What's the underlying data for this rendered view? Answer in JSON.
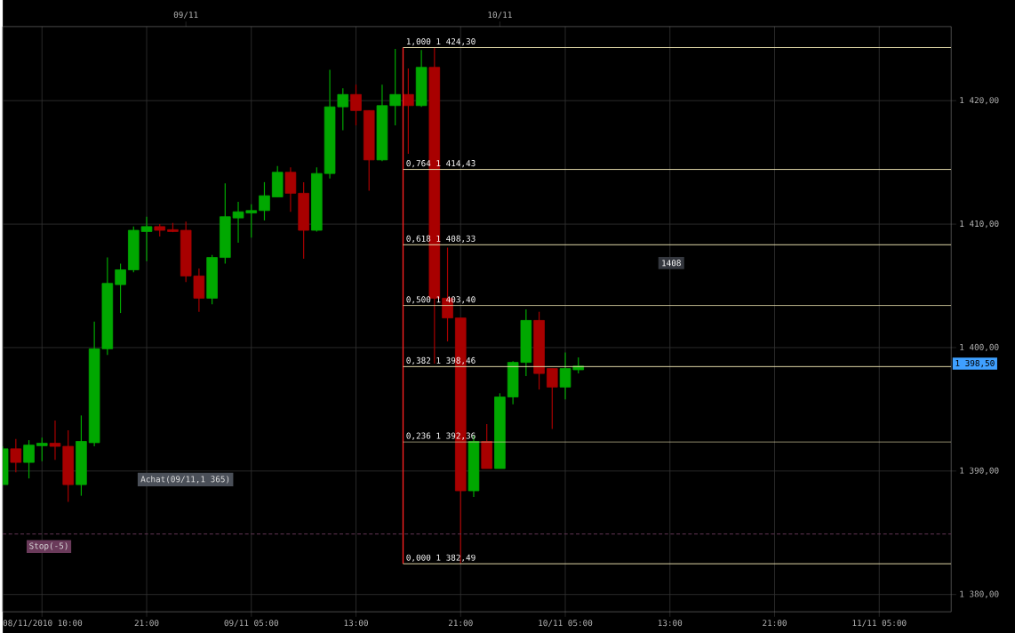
{
  "chart_data": {
    "type": "candlestick",
    "x": [
      "2010-11-08T10:00",
      "2010-11-08T11:00",
      "2010-11-08T12:00",
      "2010-11-08T13:00",
      "2010-11-08T14:00",
      "2010-11-08T15:00",
      "2010-11-08T16:00",
      "2010-11-08T17:00",
      "2010-11-08T18:00",
      "2010-11-08T19:00",
      "2010-11-08T20:00",
      "2010-11-08T21:00",
      "2010-11-08T22:00",
      "2010-11-08T23:00",
      "2010-11-09T00:00",
      "2010-11-09T01:00",
      "2010-11-09T02:00",
      "2010-11-09T03:00",
      "2010-11-09T04:00",
      "2010-11-09T05:00",
      "2010-11-09T06:00",
      "2010-11-09T07:00",
      "2010-11-09T08:00",
      "2010-11-09T09:00",
      "2010-11-09T10:00",
      "2010-11-09T11:00",
      "2010-11-09T12:00",
      "2010-11-09T13:00",
      "2010-11-09T14:00",
      "2010-11-09T15:00",
      "2010-11-09T16:00",
      "2010-11-09T17:00",
      "2010-11-09T18:00",
      "2010-11-09T19:00",
      "2010-11-09T20:00",
      "2010-11-09T21:00",
      "2010-11-09T22:00",
      "2010-11-09T23:00",
      "2010-11-10T00:00",
      "2010-11-10T01:00",
      "2010-11-10T02:00",
      "2010-11-10T03:00",
      "2010-11-10T04:00",
      "2010-11-10T05:00",
      "2010-11-10T06:00"
    ],
    "ohlc": [
      [
        1388.9,
        1392.0,
        1388.9,
        1391.8
      ],
      [
        1391.8,
        1392.6,
        1389.9,
        1390.7
      ],
      [
        1390.7,
        1392.5,
        1389.4,
        1392.1
      ],
      [
        1392.05,
        1392.7,
        1390.8,
        1392.25
      ],
      [
        1392.25,
        1394.1,
        1390.9,
        1392.0
      ],
      [
        1392.0,
        1393.3,
        1387.5,
        1388.9
      ],
      [
        1388.9,
        1394.5,
        1388.0,
        1392.4
      ],
      [
        1392.3,
        1402.1,
        1392.0,
        1399.9
      ],
      [
        1399.9,
        1407.3,
        1399.4,
        1405.2
      ],
      [
        1405.1,
        1406.8,
        1402.8,
        1406.3
      ],
      [
        1406.3,
        1409.8,
        1406.1,
        1409.5
      ],
      [
        1409.4,
        1410.6,
        1407.0,
        1409.8
      ],
      [
        1409.8,
        1410.0,
        1409.0,
        1409.5
      ],
      [
        1409.55,
        1410.1,
        1409.35,
        1409.4
      ],
      [
        1409.5,
        1410.2,
        1405.3,
        1405.8
      ],
      [
        1405.8,
        1406.4,
        1402.9,
        1404.0
      ],
      [
        1404.0,
        1407.5,
        1403.5,
        1407.3
      ],
      [
        1407.3,
        1413.3,
        1406.8,
        1410.6
      ],
      [
        1410.5,
        1411.8,
        1408.5,
        1411.0
      ],
      [
        1410.9,
        1411.6,
        1408.9,
        1411.1
      ],
      [
        1411.1,
        1413.4,
        1410.3,
        1412.3
      ],
      [
        1412.2,
        1414.7,
        1412.2,
        1414.2
      ],
      [
        1414.2,
        1414.6,
        1411.0,
        1412.5
      ],
      [
        1412.5,
        1413.4,
        1407.2,
        1409.5
      ],
      [
        1409.5,
        1414.6,
        1409.4,
        1414.1
      ],
      [
        1414.1,
        1422.5,
        1413.7,
        1419.5
      ],
      [
        1419.5,
        1421.0,
        1417.6,
        1420.5
      ],
      [
        1420.5,
        1421.3,
        1418.0,
        1419.2
      ],
      [
        1419.2,
        1419.2,
        1412.7,
        1415.2
      ],
      [
        1415.2,
        1421.3,
        1415.1,
        1419.6
      ],
      [
        1419.6,
        1424.2,
        1418.0,
        1420.5
      ],
      [
        1420.5,
        1422.6,
        1415.7,
        1419.6
      ],
      [
        1419.6,
        1424.1,
        1419.5,
        1422.7
      ],
      [
        1422.7,
        1424.3,
        1398.7,
        1404.0
      ],
      [
        1404.0,
        1408.1,
        1400.5,
        1402.4
      ],
      [
        1402.4,
        1402.4,
        1382.49,
        1388.4
      ],
      [
        1388.4,
        1392.9,
        1387.9,
        1392.4
      ],
      [
        1392.4,
        1393.8,
        1390.2,
        1390.2
      ],
      [
        1390.2,
        1396.3,
        1390.2,
        1396.0
      ],
      [
        1396.0,
        1398.9,
        1395.4,
        1398.8
      ],
      [
        1398.8,
        1403.1,
        1397.7,
        1402.2
      ],
      [
        1402.2,
        1402.9,
        1396.6,
        1397.9
      ],
      [
        1398.3,
        1398.3,
        1393.4,
        1396.8
      ],
      [
        1396.8,
        1399.6,
        1395.8,
        1398.3
      ],
      [
        1398.2,
        1399.2,
        1397.9,
        1398.5
      ]
    ],
    "colors": [
      "#00a800",
      "#a80000",
      "#00a800",
      "#00a800",
      "#a80000",
      "#a80000",
      "#00a800",
      "#00a800",
      "#00a800",
      "#00a800",
      "#00a800",
      "#00a800",
      "#a80000",
      "#a80000",
      "#a80000",
      "#a80000",
      "#00a800",
      "#00a800",
      "#00a800",
      "#00a800",
      "#00a800",
      "#00a800",
      "#a80000",
      "#a80000",
      "#00a800",
      "#00a800",
      "#00a800",
      "#a80000",
      "#a80000",
      "#00a800",
      "#00a800",
      "#a80000",
      "#00a800",
      "#a80000",
      "#a80000",
      "#a80000",
      "#00a800",
      "#a80000",
      "#00a800",
      "#00a800",
      "#00a800",
      "#a80000",
      "#a80000",
      "#00a800",
      "#00a800"
    ],
    "xlim": [
      "2010-11-08T10:00",
      "2010-11-11T10:30"
    ],
    "xticks": [
      {
        "value": "2010-11-08T10:00",
        "label": "08/11/2010 10:00"
      },
      {
        "value": "2010-11-08T13:00",
        "label": null
      },
      {
        "value": "2010-11-08T21:00",
        "label": "21:00"
      },
      {
        "value": "2010-11-09T05:00",
        "label": "09/11 05:00"
      },
      {
        "value": "2010-11-09T13:00",
        "label": "13:00"
      },
      {
        "value": "2010-11-09T21:00",
        "label": "21:00"
      },
      {
        "value": "2010-11-10T05:00",
        "label": "10/11 05:00"
      },
      {
        "value": "2010-11-10T13:00",
        "label": "13:00"
      },
      {
        "value": "2010-11-10T21:00",
        "label": "21:00"
      },
      {
        "value": "2010-11-11T05:00",
        "label": "11/11 05:00"
      }
    ],
    "x2lim": [
      "2010-11-08T10:00",
      "2010-11-11T10:30"
    ],
    "x2ticks": [
      {
        "value": "2010-11-09T00:00",
        "label": "09/11"
      },
      {
        "value": "2010-11-10T00:00",
        "label": "10/11"
      }
    ],
    "ylim": [
      1378.6,
      1426
    ],
    "yticks": [
      {
        "value": 1380,
        "label": "1 380,00"
      },
      {
        "value": 1390,
        "label": "1 390,00"
      },
      {
        "value": 1400,
        "label": "1 400,00"
      },
      {
        "value": 1410,
        "label": "1 410,00"
      },
      {
        "value": 1420,
        "label": "1 420,00"
      }
    ],
    "grid": true,
    "ref_lines": [
      {
        "axis": "x",
        "value": "2010-11-09T16:36",
        "color": "#ff2020"
      },
      {
        "axis": "y",
        "value": 1424.3,
        "label": "1,000 1 424,30",
        "color": "#f0e6b4"
      },
      {
        "axis": "y",
        "value": 1414.43,
        "label": "0,764 1 414,43",
        "color": "#f0e6b4"
      },
      {
        "axis": "y",
        "value": 1408.33,
        "label": "0,618 1 408,33",
        "color": "#f0e6b4"
      },
      {
        "axis": "y",
        "value": 1403.4,
        "label": "0,500 1 403,40",
        "color": "#f0e6b4"
      },
      {
        "axis": "y",
        "value": 1398.46,
        "label": "0,382 1 398,46",
        "color": "#f0e6b4"
      },
      {
        "axis": "y",
        "value": 1392.36,
        "label": "0,236 1 392,36",
        "color": "#f0e6b4"
      },
      {
        "axis": "y",
        "value": 1382.49,
        "label": "0,000 1 382,49",
        "color": "#f0e6b4"
      },
      {
        "axis": "y",
        "value": 1384.9,
        "label": "Stop(-5)",
        "color": "#6a3a5a",
        "line_style": "dashed"
      }
    ],
    "annotations": [
      "Achat(09/11,1 365)",
      "1408",
      "1 398,50"
    ]
  }
}
